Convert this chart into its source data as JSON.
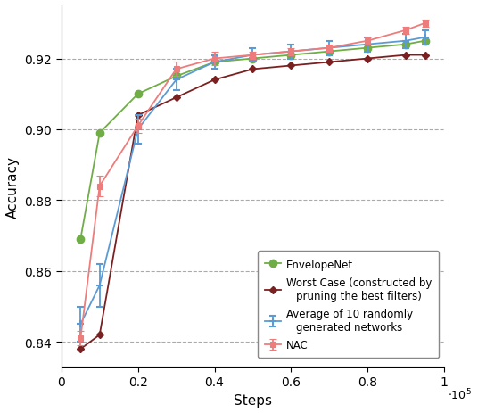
{
  "title": "",
  "xlabel": "Steps",
  "ylabel": "Accuracy",
  "xlim": [
    0,
    100000.0
  ],
  "ylim": [
    0.833,
    0.935
  ],
  "steps": [
    5000,
    10000,
    20000,
    30000,
    40000,
    50000,
    60000,
    70000,
    80000,
    90000,
    95000
  ],
  "avg_random": [
    0.845,
    0.856,
    0.9,
    0.914,
    0.919,
    0.921,
    0.922,
    0.923,
    0.924,
    0.925,
    0.926
  ],
  "avg_random_err": [
    0.005,
    0.006,
    0.004,
    0.003,
    0.002,
    0.002,
    0.002,
    0.002,
    0.002,
    0.002,
    0.002
  ],
  "nac": [
    0.841,
    0.884,
    0.901,
    0.917,
    0.92,
    0.921,
    0.922,
    0.923,
    0.925,
    0.928,
    0.93
  ],
  "nac_err": [
    0.002,
    0.003,
    0.002,
    0.002,
    0.002,
    0.001,
    0.001,
    0.001,
    0.001,
    0.001,
    0.001
  ],
  "envelope": [
    0.869,
    0.899,
    0.91,
    0.915,
    0.919,
    0.92,
    0.921,
    0.922,
    0.923,
    0.924,
    0.925
  ],
  "worst_case": [
    0.838,
    0.842,
    0.904,
    0.909,
    0.914,
    0.917,
    0.918,
    0.919,
    0.92,
    0.921,
    0.921
  ],
  "color_avg": "#5b9bd5",
  "color_nac": "#ed7d7d",
  "color_envelope": "#70ad47",
  "color_worst": "#7b2020",
  "grid_color": "#aaaaaa",
  "background": "#ffffff",
  "legend_avg": "Average of 10 randomly\ngenerated networks",
  "legend_nac": "NAC",
  "legend_envelope": "EnvelopeNet",
  "legend_worst": "Worst Case (constructed by\npruning the best filters)"
}
